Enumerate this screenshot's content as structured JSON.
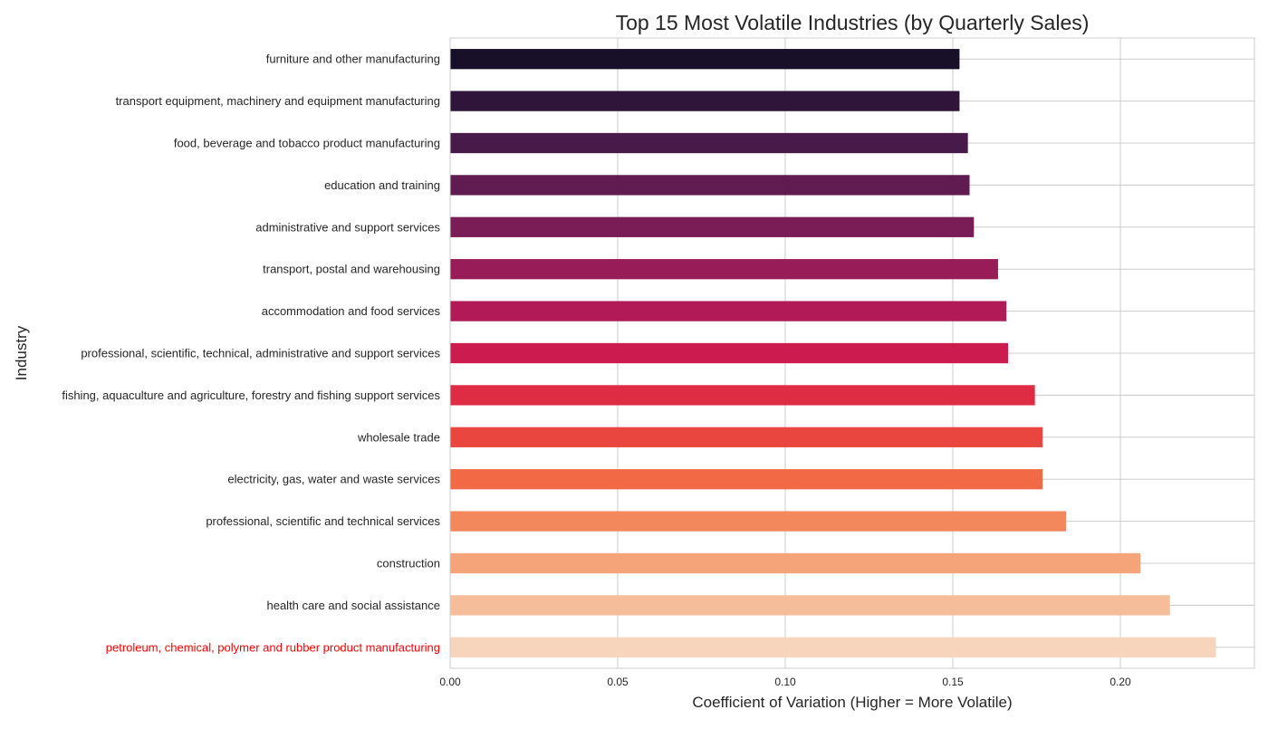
{
  "chart_data": {
    "type": "bar",
    "orientation": "horizontal",
    "title": "Top 15 Most Volatile Industries (by Quarterly Sales)",
    "xlabel": "Coefficient of Variation (Higher = More Volatile)",
    "ylabel": "Industry",
    "xlim": [
      0,
      0.24
    ],
    "xticks": [
      0.0,
      0.05,
      0.1,
      0.15,
      0.2
    ],
    "xtick_labels": [
      "0.00",
      "0.05",
      "0.10",
      "0.15",
      "0.20"
    ],
    "grid": true,
    "categories": [
      "furniture and other manufacturing",
      "transport equipment, machinery and equipment manufacturing",
      "food, beverage and tobacco product manufacturing",
      "education and training",
      "administrative and support services",
      "transport, postal and warehousing",
      "accommodation and food services",
      "professional, scientific, technical, administrative and support services",
      "fishing, aquaculture and agriculture, forestry and fishing support services",
      "wholesale trade",
      "electricity, gas, water and waste services",
      "professional, scientific and technical services",
      "construction",
      "health care and social assistance",
      "petroleum, chemical, polymer and rubber product manufacturing"
    ],
    "values": [
      0.152,
      0.152,
      0.1545,
      0.155,
      0.1563,
      0.1635,
      0.166,
      0.1665,
      0.1745,
      0.1768,
      0.1768,
      0.1838,
      0.206,
      0.2148,
      0.2285
    ],
    "colors": [
      "#180f29",
      "#2e1539",
      "#481a4a",
      "#601c50",
      "#7a1d56",
      "#981c58",
      "#b11a56",
      "#cb1b4f",
      "#de2c44",
      "#ea4640",
      "#f16a45",
      "#f3885c",
      "#f5a378",
      "#f6bd9a",
      "#f7d4bc"
    ],
    "highlight_label_color": "#ff0000",
    "highlight_index": 14,
    "label_color": "#262626"
  }
}
